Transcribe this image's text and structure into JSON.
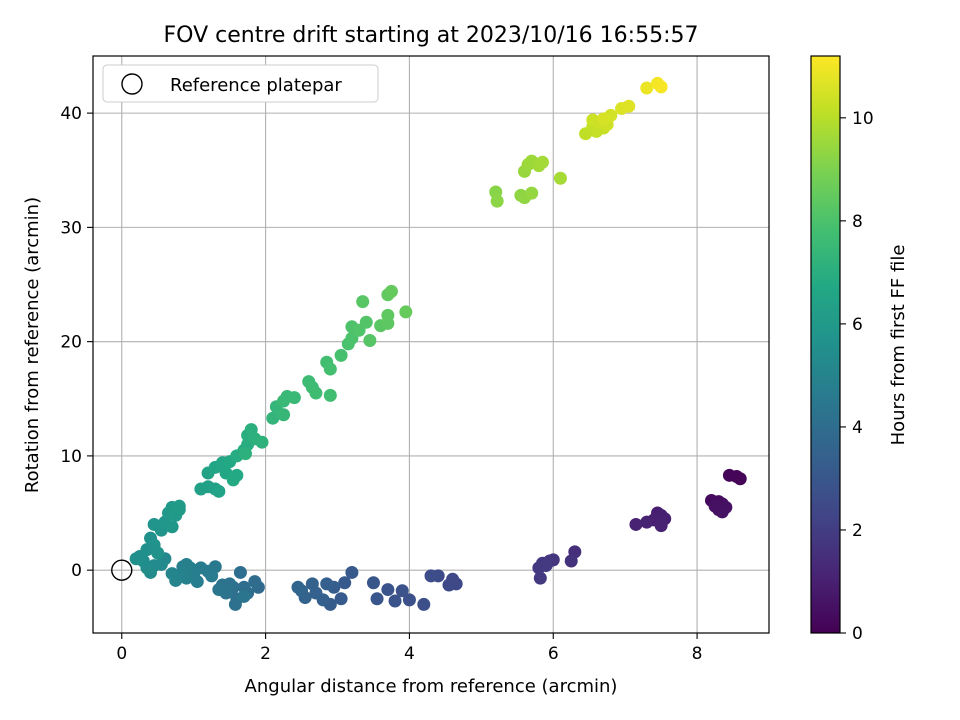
{
  "chart_data": {
    "type": "scatter",
    "title": "FOV centre drift starting at 2023/10/16 16:55:57",
    "xlabel": "Angular distance from reference (arcmin)",
    "ylabel": "Rotation from reference (arcmin)",
    "xlim": [
      -0.4,
      9.0
    ],
    "ylim": [
      -5.5,
      45.0
    ],
    "xticks": [
      0,
      2,
      4,
      6,
      8
    ],
    "yticks": [
      0,
      10,
      20,
      30,
      40
    ],
    "grid": true,
    "legend": {
      "position": "top-left",
      "entries": [
        "Reference platepar"
      ]
    },
    "reference_point": {
      "x": 0,
      "y": 0
    },
    "colorbar": {
      "label": "Hours from first FF file",
      "range": [
        0,
        11.2
      ],
      "ticks": [
        0,
        2,
        4,
        6,
        8,
        10
      ],
      "colormap": "viridis"
    },
    "series": [
      {
        "name": "FOV centre",
        "points": [
          {
            "x": 8.45,
            "y": 8.3,
            "h": 0.1
          },
          {
            "x": 8.55,
            "y": 8.2,
            "h": 0.1
          },
          {
            "x": 8.6,
            "y": 8.0,
            "h": 0.15
          },
          {
            "x": 8.2,
            "y": 6.1,
            "h": 0.3
          },
          {
            "x": 8.3,
            "y": 6.0,
            "h": 0.35
          },
          {
            "x": 8.35,
            "y": 5.8,
            "h": 0.4
          },
          {
            "x": 8.3,
            "y": 5.3,
            "h": 0.45
          },
          {
            "x": 8.4,
            "y": 5.5,
            "h": 0.5
          },
          {
            "x": 8.25,
            "y": 5.6,
            "h": 0.5
          },
          {
            "x": 8.35,
            "y": 5.1,
            "h": 0.55
          },
          {
            "x": 7.45,
            "y": 5.0,
            "h": 0.9
          },
          {
            "x": 7.5,
            "y": 4.8,
            "h": 0.95
          },
          {
            "x": 7.4,
            "y": 4.4,
            "h": 1.0
          },
          {
            "x": 7.55,
            "y": 4.5,
            "h": 1.0
          },
          {
            "x": 7.3,
            "y": 4.2,
            "h": 1.05
          },
          {
            "x": 7.5,
            "y": 3.9,
            "h": 1.1
          },
          {
            "x": 7.15,
            "y": 4.0,
            "h": 1.1
          },
          {
            "x": 6.3,
            "y": 1.6,
            "h": 1.5
          },
          {
            "x": 6.25,
            "y": 0.8,
            "h": 1.6
          },
          {
            "x": 6.0,
            "y": 0.9,
            "h": 1.7
          },
          {
            "x": 5.95,
            "y": 0.8,
            "h": 1.75
          },
          {
            "x": 5.85,
            "y": 0.6,
            "h": 1.8
          },
          {
            "x": 5.8,
            "y": 0.2,
            "h": 1.85
          },
          {
            "x": 5.82,
            "y": -0.7,
            "h": 1.9
          },
          {
            "x": 5.9,
            "y": 0.4,
            "h": 1.9
          },
          {
            "x": 4.6,
            "y": -0.8,
            "h": 2.4
          },
          {
            "x": 4.65,
            "y": -1.2,
            "h": 2.45
          },
          {
            "x": 4.55,
            "y": -1.3,
            "h": 2.5
          },
          {
            "x": 4.4,
            "y": -0.5,
            "h": 2.55
          },
          {
            "x": 4.3,
            "y": -0.5,
            "h": 2.6
          },
          {
            "x": 4.2,
            "y": -3.0,
            "h": 2.7
          },
          {
            "x": 4.0,
            "y": -2.6,
            "h": 2.75
          },
          {
            "x": 3.9,
            "y": -1.8,
            "h": 2.8
          },
          {
            "x": 3.8,
            "y": -2.7,
            "h": 2.85
          },
          {
            "x": 3.7,
            "y": -1.7,
            "h": 2.9
          },
          {
            "x": 3.55,
            "y": -2.5,
            "h": 2.95
          },
          {
            "x": 3.5,
            "y": -1.1,
            "h": 3.0
          },
          {
            "x": 3.2,
            "y": -0.2,
            "h": 3.1
          },
          {
            "x": 3.1,
            "y": -1.1,
            "h": 3.15
          },
          {
            "x": 3.05,
            "y": -2.5,
            "h": 3.2
          },
          {
            "x": 2.9,
            "y": -3.0,
            "h": 3.25
          },
          {
            "x": 2.95,
            "y": -1.5,
            "h": 3.3
          },
          {
            "x": 2.8,
            "y": -2.6,
            "h": 3.35
          },
          {
            "x": 2.85,
            "y": -1.2,
            "h": 3.4
          },
          {
            "x": 2.7,
            "y": -2.0,
            "h": 3.45
          },
          {
            "x": 2.65,
            "y": -1.2,
            "h": 3.5
          },
          {
            "x": 2.55,
            "y": -2.4,
            "h": 3.55
          },
          {
            "x": 2.5,
            "y": -1.8,
            "h": 3.6
          },
          {
            "x": 2.45,
            "y": -1.5,
            "h": 3.65
          },
          {
            "x": 1.9,
            "y": -1.5,
            "h": 3.9
          },
          {
            "x": 1.85,
            "y": -1.0,
            "h": 3.95
          },
          {
            "x": 1.75,
            "y": -2.0,
            "h": 4.0
          },
          {
            "x": 1.7,
            "y": -1.5,
            "h": 4.0
          },
          {
            "x": 1.65,
            "y": -0.2,
            "h": 4.05
          },
          {
            "x": 1.6,
            "y": -2.5,
            "h": 4.1
          },
          {
            "x": 1.55,
            "y": -1.5,
            "h": 4.1
          },
          {
            "x": 1.58,
            "y": -3.0,
            "h": 4.15
          },
          {
            "x": 1.5,
            "y": -1.2,
            "h": 4.2
          },
          {
            "x": 1.45,
            "y": -2.0,
            "h": 4.25
          },
          {
            "x": 1.4,
            "y": -1.3,
            "h": 4.3
          },
          {
            "x": 1.35,
            "y": -1.7,
            "h": 4.35
          },
          {
            "x": 1.7,
            "y": -2.3,
            "h": 4.35
          },
          {
            "x": 1.3,
            "y": 0.3,
            "h": 4.5
          },
          {
            "x": 1.2,
            "y": -0.1,
            "h": 4.55
          },
          {
            "x": 1.25,
            "y": -0.5,
            "h": 4.6
          },
          {
            "x": 1.1,
            "y": 0.2,
            "h": 4.65
          },
          {
            "x": 1.05,
            "y": -1.0,
            "h": 4.7
          },
          {
            "x": 1.0,
            "y": -0.3,
            "h": 4.75
          },
          {
            "x": 0.95,
            "y": 0.2,
            "h": 4.8
          },
          {
            "x": 0.9,
            "y": 0.5,
            "h": 4.85
          },
          {
            "x": 0.85,
            "y": 0.3,
            "h": 4.9
          },
          {
            "x": 0.9,
            "y": -0.7,
            "h": 4.9
          },
          {
            "x": 0.8,
            "y": -0.5,
            "h": 4.95
          },
          {
            "x": 0.75,
            "y": -0.9,
            "h": 5.0
          },
          {
            "x": 0.7,
            "y": -0.3,
            "h": 5.05
          },
          {
            "x": 0.6,
            "y": 1.0,
            "h": 5.2
          },
          {
            "x": 0.55,
            "y": 0.5,
            "h": 5.25
          },
          {
            "x": 0.45,
            "y": 0.4,
            "h": 5.3
          },
          {
            "x": 0.4,
            "y": -0.2,
            "h": 5.35
          },
          {
            "x": 0.35,
            "y": 0.2,
            "h": 5.4
          },
          {
            "x": 0.3,
            "y": 0.8,
            "h": 5.45
          },
          {
            "x": 0.25,
            "y": 1.2,
            "h": 5.5
          },
          {
            "x": 0.2,
            "y": 1.0,
            "h": 5.55
          },
          {
            "x": 0.35,
            "y": 1.8,
            "h": 5.55
          },
          {
            "x": 0.4,
            "y": 2.8,
            "h": 5.6
          },
          {
            "x": 0.45,
            "y": 2.2,
            "h": 5.65
          },
          {
            "x": 0.5,
            "y": 1.5,
            "h": 5.7
          },
          {
            "x": 0.45,
            "y": 4.0,
            "h": 5.75
          },
          {
            "x": 0.55,
            "y": 3.5,
            "h": 5.8
          },
          {
            "x": 0.6,
            "y": 4.2,
            "h": 5.85
          },
          {
            "x": 0.7,
            "y": 3.8,
            "h": 5.9
          },
          {
            "x": 0.65,
            "y": 5.0,
            "h": 5.95
          },
          {
            "x": 0.7,
            "y": 5.5,
            "h": 6.0
          },
          {
            "x": 0.75,
            "y": 4.8,
            "h": 6.05
          },
          {
            "x": 0.8,
            "y": 5.3,
            "h": 6.1
          },
          {
            "x": 0.8,
            "y": 5.6,
            "h": 6.1
          },
          {
            "x": 1.1,
            "y": 7.1,
            "h": 6.3
          },
          {
            "x": 1.2,
            "y": 7.3,
            "h": 6.35
          },
          {
            "x": 1.3,
            "y": 7.1,
            "h": 6.4
          },
          {
            "x": 1.35,
            "y": 6.9,
            "h": 6.45
          },
          {
            "x": 1.2,
            "y": 8.5,
            "h": 6.5
          },
          {
            "x": 1.3,
            "y": 9.0,
            "h": 6.55
          },
          {
            "x": 1.4,
            "y": 9.4,
            "h": 6.6
          },
          {
            "x": 1.45,
            "y": 8.5,
            "h": 6.65
          },
          {
            "x": 1.5,
            "y": 9.5,
            "h": 6.7
          },
          {
            "x": 1.6,
            "y": 8.3,
            "h": 6.75
          },
          {
            "x": 1.55,
            "y": 7.9,
            "h": 6.8
          },
          {
            "x": 1.6,
            "y": 10.0,
            "h": 6.85
          },
          {
            "x": 1.7,
            "y": 10.5,
            "h": 6.9
          },
          {
            "x": 1.75,
            "y": 11.0,
            "h": 6.95
          },
          {
            "x": 1.75,
            "y": 11.8,
            "h": 7.0
          },
          {
            "x": 1.8,
            "y": 12.3,
            "h": 7.05
          },
          {
            "x": 1.85,
            "y": 11.5,
            "h": 7.1
          },
          {
            "x": 1.72,
            "y": 10.2,
            "h": 7.1
          },
          {
            "x": 1.95,
            "y": 11.2,
            "h": 7.15
          },
          {
            "x": 2.1,
            "y": 13.3,
            "h": 7.3
          },
          {
            "x": 2.15,
            "y": 14.3,
            "h": 7.35
          },
          {
            "x": 2.25,
            "y": 13.6,
            "h": 7.4
          },
          {
            "x": 2.3,
            "y": 15.2,
            "h": 7.45
          },
          {
            "x": 2.4,
            "y": 15.1,
            "h": 7.5
          },
          {
            "x": 2.25,
            "y": 14.8,
            "h": 7.5
          },
          {
            "x": 2.6,
            "y": 16.5,
            "h": 7.6
          },
          {
            "x": 2.65,
            "y": 16.0,
            "h": 7.65
          },
          {
            "x": 2.7,
            "y": 15.5,
            "h": 7.7
          },
          {
            "x": 2.9,
            "y": 15.3,
            "h": 7.75
          },
          {
            "x": 2.85,
            "y": 18.2,
            "h": 7.8
          },
          {
            "x": 2.9,
            "y": 17.6,
            "h": 7.85
          },
          {
            "x": 3.05,
            "y": 18.8,
            "h": 7.9
          },
          {
            "x": 3.15,
            "y": 19.8,
            "h": 7.95
          },
          {
            "x": 3.2,
            "y": 20.3,
            "h": 8.0
          },
          {
            "x": 3.2,
            "y": 21.3,
            "h": 8.05
          },
          {
            "x": 3.3,
            "y": 21.0,
            "h": 8.1
          },
          {
            "x": 3.4,
            "y": 21.7,
            "h": 8.15
          },
          {
            "x": 3.45,
            "y": 20.1,
            "h": 8.2
          },
          {
            "x": 3.35,
            "y": 23.5,
            "h": 8.25
          },
          {
            "x": 3.6,
            "y": 21.4,
            "h": 8.3
          },
          {
            "x": 3.7,
            "y": 21.6,
            "h": 8.35
          },
          {
            "x": 3.7,
            "y": 22.3,
            "h": 8.4
          },
          {
            "x": 3.7,
            "y": 24.1,
            "h": 8.45
          },
          {
            "x": 3.75,
            "y": 24.4,
            "h": 8.5
          },
          {
            "x": 3.95,
            "y": 22.6,
            "h": 8.55
          },
          {
            "x": 5.2,
            "y": 33.1,
            "h": 9.2
          },
          {
            "x": 5.22,
            "y": 32.3,
            "h": 9.25
          },
          {
            "x": 5.55,
            "y": 32.8,
            "h": 9.3
          },
          {
            "x": 5.6,
            "y": 32.6,
            "h": 9.35
          },
          {
            "x": 5.7,
            "y": 33.0,
            "h": 9.4
          },
          {
            "x": 5.6,
            "y": 34.9,
            "h": 9.45
          },
          {
            "x": 5.65,
            "y": 35.5,
            "h": 9.5
          },
          {
            "x": 5.7,
            "y": 35.8,
            "h": 9.55
          },
          {
            "x": 5.8,
            "y": 35.4,
            "h": 9.6
          },
          {
            "x": 5.85,
            "y": 35.7,
            "h": 9.65
          },
          {
            "x": 6.1,
            "y": 34.3,
            "h": 9.7
          },
          {
            "x": 6.45,
            "y": 38.2,
            "h": 10.1
          },
          {
            "x": 6.55,
            "y": 38.8,
            "h": 10.15
          },
          {
            "x": 6.6,
            "y": 38.4,
            "h": 10.2
          },
          {
            "x": 6.7,
            "y": 38.7,
            "h": 10.25
          },
          {
            "x": 6.55,
            "y": 39.4,
            "h": 10.3
          },
          {
            "x": 6.65,
            "y": 39.2,
            "h": 10.35
          },
          {
            "x": 6.75,
            "y": 39.0,
            "h": 10.4
          },
          {
            "x": 6.8,
            "y": 39.8,
            "h": 10.45
          },
          {
            "x": 6.7,
            "y": 39.5,
            "h": 10.5
          },
          {
            "x": 6.95,
            "y": 40.4,
            "h": 10.6
          },
          {
            "x": 7.05,
            "y": 40.6,
            "h": 10.65
          },
          {
            "x": 7.3,
            "y": 42.2,
            "h": 10.9
          },
          {
            "x": 7.45,
            "y": 42.6,
            "h": 11.0
          },
          {
            "x": 7.5,
            "y": 42.3,
            "h": 11.1
          }
        ]
      }
    ]
  }
}
